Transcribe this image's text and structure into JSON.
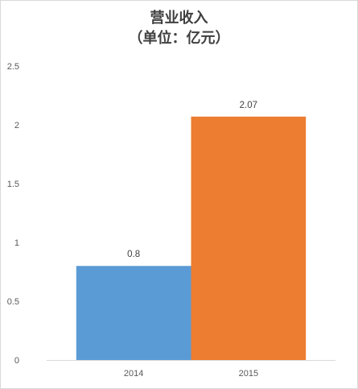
{
  "chart_data": {
    "type": "bar",
    "title": "营业收入",
    "subtitle": "（单位：亿元）",
    "categories": [
      "2014",
      "2015"
    ],
    "values": [
      0.8,
      2.07
    ],
    "data_labels": [
      "0.8",
      "2.07"
    ],
    "colors": [
      "#5b9bd5",
      "#ed7d31"
    ],
    "ylim": [
      0,
      2.5
    ],
    "yticks": [
      0,
      0.5,
      1,
      1.5,
      2,
      2.5
    ],
    "ytick_labels": [
      "0",
      "0.5",
      "1",
      "1.5",
      "2",
      "2.5"
    ],
    "grid": false,
    "legend": "none",
    "axis_color": "#d9d9d9"
  }
}
